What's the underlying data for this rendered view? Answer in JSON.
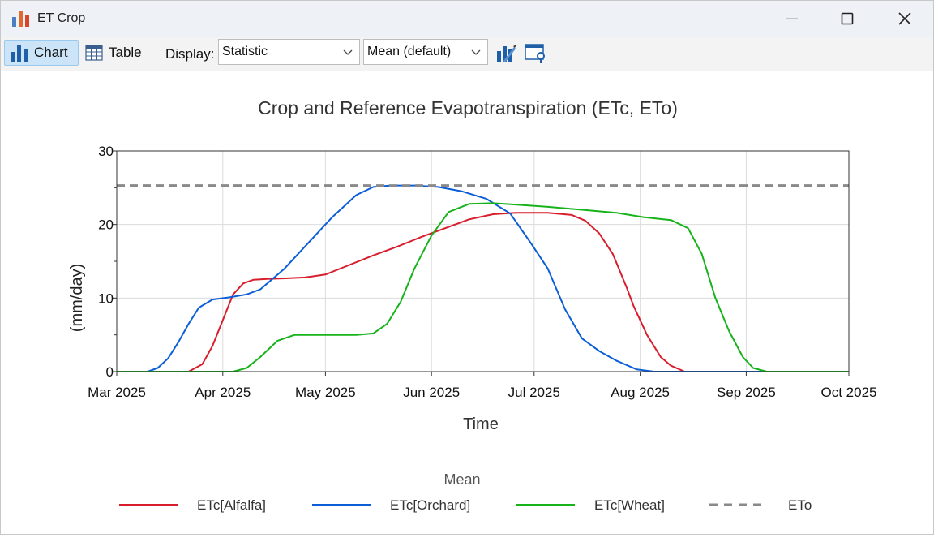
{
  "window": {
    "title": "ET Crop"
  },
  "toolbar": {
    "chart_label": "Chart",
    "table_label": "Table",
    "display_label": "Display:",
    "display_select": "Statistic",
    "statistic_select": "Mean (default)"
  },
  "colors": {
    "alfalfa": "#d81e2c",
    "orchard": "#0b5ed7",
    "wheat": "#17b31a",
    "eto": "#8a8a8a",
    "accent": "#cce4f7"
  },
  "chart_data": {
    "type": "line",
    "title": "Crop and Reference Evapotranspiration (ETc, ETo)",
    "xlabel": "Time",
    "ylabel": "(mm/day)",
    "ylim": [
      0,
      30
    ],
    "yticks": [
      "0",
      "10",
      "20",
      "30"
    ],
    "xlim": [
      "2025-03-01",
      "2025-10-01"
    ],
    "xticks": [
      {
        "date": "2025-03-01",
        "label": "Mar 2025"
      },
      {
        "date": "2025-04-01",
        "label": "Apr 2025"
      },
      {
        "date": "2025-05-01",
        "label": "May 2025"
      },
      {
        "date": "2025-06-01",
        "label": "Jun 2025"
      },
      {
        "date": "2025-07-01",
        "label": "Jul 2025"
      },
      {
        "date": "2025-08-01",
        "label": "Aug 2025"
      },
      {
        "date": "2025-09-01",
        "label": "Sep 2025"
      },
      {
        "date": "2025-10-01",
        "label": "Oct 2025"
      }
    ],
    "grid": true,
    "legend_title": "Mean",
    "legend_position": "bottom",
    "series": [
      {
        "name": "ETc[Alfalfa]",
        "color": "#d81e2c",
        "dash": false,
        "x": [
          "2025-03-01",
          "2025-03-22",
          "2025-03-26",
          "2025-03-29",
          "2025-04-01",
          "2025-04-04",
          "2025-04-07",
          "2025-04-10",
          "2025-04-14",
          "2025-04-20",
          "2025-04-25",
          "2025-05-01",
          "2025-05-08",
          "2025-05-15",
          "2025-05-22",
          "2025-05-29",
          "2025-06-05",
          "2025-06-12",
          "2025-06-19",
          "2025-06-26",
          "2025-07-05",
          "2025-07-12",
          "2025-07-16",
          "2025-07-20",
          "2025-07-24",
          "2025-07-28",
          "2025-07-30",
          "2025-08-03",
          "2025-08-07",
          "2025-08-10",
          "2025-08-14",
          "2025-10-01"
        ],
        "y": [
          0,
          0,
          1,
          3.5,
          7,
          10.5,
          12,
          12.5,
          12.6,
          12.7,
          12.8,
          13.2,
          14.5,
          15.8,
          17,
          18.3,
          19.5,
          20.7,
          21.4,
          21.6,
          21.6,
          21.3,
          20.5,
          18.8,
          16,
          11.5,
          9,
          5,
          2,
          0.8,
          0,
          0
        ]
      },
      {
        "name": "ETc[Orchard]",
        "color": "#0b5ed7",
        "dash": false,
        "x": [
          "2025-03-01",
          "2025-03-10",
          "2025-03-13",
          "2025-03-16",
          "2025-03-19",
          "2025-03-22",
          "2025-03-25",
          "2025-03-29",
          "2025-04-03",
          "2025-04-08",
          "2025-04-12",
          "2025-04-19",
          "2025-04-26",
          "2025-05-03",
          "2025-05-10",
          "2025-05-15",
          "2025-05-20",
          "2025-05-27",
          "2025-06-03",
          "2025-06-10",
          "2025-06-17",
          "2025-06-24",
          "2025-06-30",
          "2025-07-05",
          "2025-07-10",
          "2025-07-15",
          "2025-07-20",
          "2025-07-25",
          "2025-07-31",
          "2025-08-05",
          "2025-10-01"
        ],
        "y": [
          0,
          0,
          0.5,
          1.8,
          4,
          6.5,
          8.7,
          9.8,
          10.1,
          10.5,
          11.2,
          14,
          17.5,
          21,
          24,
          25.1,
          25.3,
          25.3,
          25.1,
          24.5,
          23.5,
          21.5,
          17.5,
          14,
          8.5,
          4.5,
          2.8,
          1.5,
          0.3,
          0,
          0
        ]
      },
      {
        "name": "ETc[Wheat]",
        "color": "#17b31a",
        "dash": false,
        "x": [
          "2025-03-01",
          "2025-04-04",
          "2025-04-08",
          "2025-04-12",
          "2025-04-17",
          "2025-04-22",
          "2025-05-01",
          "2025-05-10",
          "2025-05-15",
          "2025-05-19",
          "2025-05-23",
          "2025-05-27",
          "2025-06-01",
          "2025-06-06",
          "2025-06-12",
          "2025-06-19",
          "2025-06-26",
          "2025-07-05",
          "2025-07-15",
          "2025-07-25",
          "2025-08-02",
          "2025-08-10",
          "2025-08-15",
          "2025-08-19",
          "2025-08-23",
          "2025-08-27",
          "2025-08-31",
          "2025-09-03",
          "2025-09-07",
          "2025-10-01"
        ],
        "y": [
          0,
          0,
          0.5,
          2,
          4.2,
          5,
          5,
          5,
          5.2,
          6.5,
          9.5,
          14,
          18.5,
          21.7,
          22.8,
          22.9,
          22.7,
          22.4,
          22,
          21.6,
          21,
          20.6,
          19.5,
          16,
          10,
          5.5,
          2,
          0.5,
          0,
          0
        ]
      },
      {
        "name": "ETo",
        "color": "#8a8a8a",
        "dash": true,
        "x": [
          "2025-03-01",
          "2025-10-01"
        ],
        "y": [
          25.3,
          25.3
        ]
      }
    ]
  }
}
